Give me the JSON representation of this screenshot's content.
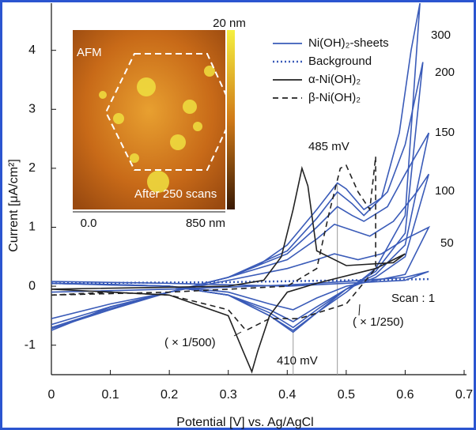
{
  "chart_data": {
    "type": "line",
    "xlabel": "Potential [V] vs. Ag/AgCl",
    "ylabel": "Current [μA/cm²]",
    "xlim": [
      0,
      0.7
    ],
    "xticks": [
      0,
      0.1,
      0.2,
      0.3,
      0.4,
      0.5,
      0.6,
      0.7
    ],
    "ylim": [
      -1.5,
      4.8
    ],
    "yticks": [
      -1,
      0,
      1,
      2,
      3,
      4
    ],
    "grid": false,
    "legend": "upper right",
    "series": [
      {
        "name": "Ni(OH)₂-sheets",
        "color": "#3a5bb8",
        "style": "solid",
        "curves": [
          {
            "label": "Scan : 1",
            "x": [
              0,
              0.2,
              0.4,
              0.5,
              0.6,
              0.64,
              0.6,
              0.4,
              0.2,
              0
            ],
            "values": [
              -0.1,
              -0.05,
              0.02,
              0.08,
              0.15,
              0.25,
              0.1,
              0.0,
              0.05,
              0.08
            ]
          },
          {
            "label": "50",
            "x": [
              0,
              0.1,
              0.2,
              0.3,
              0.4,
              0.45,
              0.48,
              0.52,
              0.56,
              0.6,
              0.64,
              0.6,
              0.5,
              0.45,
              0.41,
              0.37,
              0.3,
              0.2,
              0.1,
              0
            ],
            "values": [
              -0.55,
              -0.3,
              -0.1,
              0.1,
              0.3,
              0.45,
              0.55,
              0.45,
              0.55,
              0.8,
              1.0,
              0.2,
              0.0,
              -0.2,
              -0.4,
              -0.3,
              -0.1,
              0.0,
              0.02,
              0.05
            ]
          },
          {
            "label": "100",
            "x": [
              0,
              0.1,
              0.2,
              0.3,
              0.4,
              0.45,
              0.48,
              0.51,
              0.54,
              0.58,
              0.62,
              0.64,
              0.6,
              0.55,
              0.5,
              0.45,
              0.41,
              0.37,
              0.3,
              0.2,
              0.1,
              0
            ],
            "values": [
              -0.65,
              -0.35,
              -0.1,
              0.15,
              0.45,
              0.8,
              1.05,
              0.95,
              0.85,
              1.1,
              1.6,
              1.9,
              0.5,
              0.15,
              -0.05,
              -0.35,
              -0.6,
              -0.4,
              -0.15,
              0.0,
              0.03,
              0.05
            ]
          },
          {
            "label": "150",
            "x": [
              0,
              0.1,
              0.2,
              0.3,
              0.4,
              0.45,
              0.485,
              0.51,
              0.53,
              0.57,
              0.6,
              0.64,
              0.6,
              0.55,
              0.5,
              0.45,
              0.41,
              0.37,
              0.3,
              0.2,
              0.1,
              0
            ],
            "values": [
              -0.7,
              -0.38,
              -0.1,
              0.15,
              0.55,
              1.0,
              1.35,
              1.2,
              1.1,
              1.35,
              1.9,
              2.6,
              0.7,
              0.2,
              -0.05,
              -0.4,
              -0.7,
              -0.45,
              -0.15,
              0.0,
              0.03,
              0.05
            ]
          },
          {
            "label": "200",
            "x": [
              0,
              0.1,
              0.2,
              0.3,
              0.4,
              0.45,
              0.485,
              0.51,
              0.53,
              0.57,
              0.6,
              0.63,
              0.6,
              0.55,
              0.5,
              0.45,
              0.41,
              0.37,
              0.3,
              0.2,
              0.1,
              0
            ],
            "values": [
              -0.72,
              -0.4,
              -0.1,
              0.15,
              0.6,
              1.15,
              1.6,
              1.4,
              1.2,
              1.6,
              2.4,
              3.8,
              0.9,
              0.25,
              -0.05,
              -0.45,
              -0.75,
              -0.5,
              -0.15,
              0.0,
              0.03,
              0.05
            ]
          },
          {
            "label": "300",
            "x": [
              0,
              0.1,
              0.2,
              0.3,
              0.35,
              0.4,
              0.45,
              0.485,
              0.5,
              0.53,
              0.56,
              0.59,
              0.61,
              0.625,
              0.6,
              0.55,
              0.5,
              0.45,
              0.41,
              0.37,
              0.3,
              0.2,
              0.1,
              0
            ],
            "values": [
              -0.75,
              -0.35,
              -0.1,
              0.15,
              0.35,
              0.7,
              1.3,
              1.75,
              1.65,
              1.3,
              1.5,
              2.6,
              4.0,
              4.8,
              1.2,
              0.3,
              -0.1,
              -0.45,
              -0.78,
              -0.5,
              -0.15,
              0.0,
              0.03,
              0.05
            ]
          }
        ]
      },
      {
        "name": "Background",
        "color": "#3a5bb8",
        "style": "dotted",
        "x": [
          0,
          0.3,
          0.64
        ],
        "values": [
          0.05,
          0.07,
          0.12
        ]
      },
      {
        "name": "α-Ni(OH)₂",
        "color": "#222222",
        "style": "solid",
        "x": [
          0,
          0.3,
          0.36,
          0.39,
          0.41,
          0.425,
          0.435,
          0.45,
          0.5,
          0.58,
          0.6,
          0.55,
          0.45,
          0.4,
          0.37,
          0.35,
          0.34,
          0.325,
          0.3,
          0.2,
          0.1,
          0
        ],
        "values": [
          -0.05,
          0.0,
          0.1,
          0.5,
          1.3,
          2.0,
          1.7,
          0.6,
          0.35,
          0.4,
          0.55,
          0.3,
          0.05,
          -0.1,
          -0.5,
          -1.1,
          -1.45,
          -1.1,
          -0.5,
          -0.15,
          -0.1,
          -0.05
        ]
      },
      {
        "name": "β-Ni(OH)₂",
        "color": "#222222",
        "style": "dashed",
        "x": [
          0,
          0.2,
          0.4,
          0.45,
          0.47,
          0.49,
          0.5,
          0.52,
          0.54,
          0.55,
          0.55,
          0.5,
          0.42,
          0.37,
          0.33,
          0.3,
          0.2,
          0.1,
          0
        ],
        "values": [
          -0.15,
          -0.1,
          0.0,
          0.3,
          1.2,
          2.0,
          2.05,
          1.6,
          1.3,
          2.2,
          0.3,
          -0.3,
          -0.55,
          -0.55,
          -0.75,
          -0.4,
          -0.15,
          -0.1,
          -0.15
        ]
      }
    ],
    "markers": [
      {
        "x": 0.41,
        "y": -0.78,
        "label": "410 mV"
      },
      {
        "x": 0.485,
        "y": 1.75,
        "label": "485 mV"
      }
    ],
    "annotations": [
      "( × 1/500)",
      "( × 1/250)"
    ],
    "inset": {
      "title": "AFM",
      "scale_max": "20 nm",
      "caption": "After 250 scans",
      "x_start": "0.0",
      "x_end": "850 nm"
    }
  }
}
